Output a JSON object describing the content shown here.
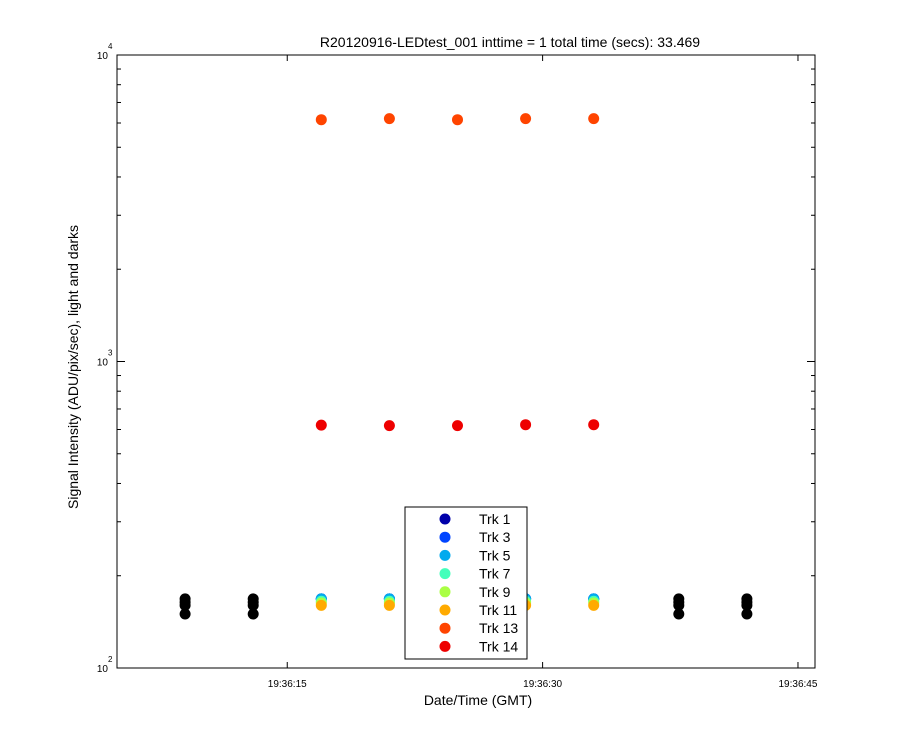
{
  "chart_data": {
    "type": "scatter",
    "title": "R20120916-LEDtest_001 inttime = 1 total time (secs): 33.469",
    "xlabel": "Date/Time (GMT)",
    "ylabel": "Signal Intensity (ADU/pix/sec), light and darks",
    "x_axis": {
      "type": "time",
      "range": [
        "19:36:05",
        "19:36:46"
      ],
      "ticks": [
        {
          "value": "19:36:15",
          "label": "19:36:15"
        },
        {
          "value": "19:36:30",
          "label": "19:36:30"
        },
        {
          "value": "19:36:45",
          "label": "19:36:45"
        }
      ]
    },
    "y_axis": {
      "scale": "log",
      "range": [
        100,
        10000
      ],
      "ticks": [
        {
          "value": 100,
          "base": "10",
          "exp": "2"
        },
        {
          "value": 1000,
          "base": "10",
          "exp": "3"
        },
        {
          "value": 10000,
          "base": "10",
          "exp": "4"
        }
      ]
    },
    "legend": {
      "placement": "bottom-center",
      "entries": [
        {
          "label": "Trk 1",
          "color": "#0000aa"
        },
        {
          "label": "Trk 3",
          "color": "#0044ff"
        },
        {
          "label": "Trk 5",
          "color": "#00aaee"
        },
        {
          "label": "Trk 7",
          "color": "#44ffbb"
        },
        {
          "label": "Trk 9",
          "color": "#aaff44"
        },
        {
          "label": "Trk 11",
          "color": "#ffaa00"
        },
        {
          "label": "Trk 13",
          "color": "#ff4400"
        },
        {
          "label": "Trk 14",
          "color": "#ee0000"
        }
      ]
    },
    "series": [
      {
        "name": "Trk 1",
        "color": "#0000aa",
        "points": [
          [
            "19:36:17",
            168
          ],
          [
            "19:36:21",
            168
          ],
          [
            "19:36:25",
            168
          ],
          [
            "19:36:29",
            168
          ],
          [
            "19:36:33",
            168
          ]
        ]
      },
      {
        "name": "Trk 3",
        "color": "#0044ff",
        "points": [
          [
            "19:36:17",
            168
          ],
          [
            "19:36:21",
            168
          ],
          [
            "19:36:25",
            168
          ],
          [
            "19:36:29",
            168
          ],
          [
            "19:36:33",
            168
          ]
        ]
      },
      {
        "name": "Trk 5",
        "color": "#00aaee",
        "points": [
          [
            "19:36:17",
            168
          ],
          [
            "19:36:21",
            168
          ],
          [
            "19:36:25",
            168
          ],
          [
            "19:36:29",
            168
          ],
          [
            "19:36:33",
            168
          ]
        ]
      },
      {
        "name": "Trk 7",
        "color": "#44ffbb",
        "points": [
          [
            "19:36:17",
            165
          ],
          [
            "19:36:21",
            165
          ],
          [
            "19:36:25",
            165
          ],
          [
            "19:36:29",
            165
          ],
          [
            "19:36:33",
            165
          ]
        ]
      },
      {
        "name": "Trk 9",
        "color": "#aaff44",
        "points": [
          [
            "19:36:17",
            163
          ],
          [
            "19:36:21",
            163
          ],
          [
            "19:36:25",
            163
          ],
          [
            "19:36:29",
            163
          ],
          [
            "19:36:33",
            163
          ]
        ]
      },
      {
        "name": "Trk 11",
        "color": "#ffaa00",
        "points": [
          [
            "19:36:17",
            160
          ],
          [
            "19:36:21",
            160
          ],
          [
            "19:36:25",
            160
          ],
          [
            "19:36:29",
            160
          ],
          [
            "19:36:33",
            160
          ]
        ]
      },
      {
        "name": "Trk 13",
        "color": "#ff4400",
        "points": [
          [
            "19:36:17",
            6150
          ],
          [
            "19:36:21",
            6200
          ],
          [
            "19:36:25",
            6150
          ],
          [
            "19:36:29",
            6200
          ],
          [
            "19:36:33",
            6200
          ]
        ]
      },
      {
        "name": "Trk 14",
        "color": "#ee0000",
        "points": [
          [
            "19:36:17",
            620
          ],
          [
            "19:36:21",
            618
          ],
          [
            "19:36:25",
            618
          ],
          [
            "19:36:29",
            622
          ],
          [
            "19:36:33",
            622
          ]
        ]
      },
      {
        "name": "",
        "color": "#000000",
        "points": [
          [
            "19:36:09",
            168
          ],
          [
            "19:36:09",
            164
          ],
          [
            "19:36:09",
            160
          ],
          [
            "19:36:09",
            150
          ],
          [
            "19:36:13",
            168
          ],
          [
            "19:36:13",
            164
          ],
          [
            "19:36:13",
            160
          ],
          [
            "19:36:13",
            150
          ],
          [
            "19:36:38",
            168
          ],
          [
            "19:36:38",
            164
          ],
          [
            "19:36:38",
            160
          ],
          [
            "19:36:38",
            150
          ],
          [
            "19:36:42",
            168
          ],
          [
            "19:36:42",
            164
          ],
          [
            "19:36:42",
            160
          ],
          [
            "19:36:42",
            150
          ]
        ]
      }
    ]
  }
}
